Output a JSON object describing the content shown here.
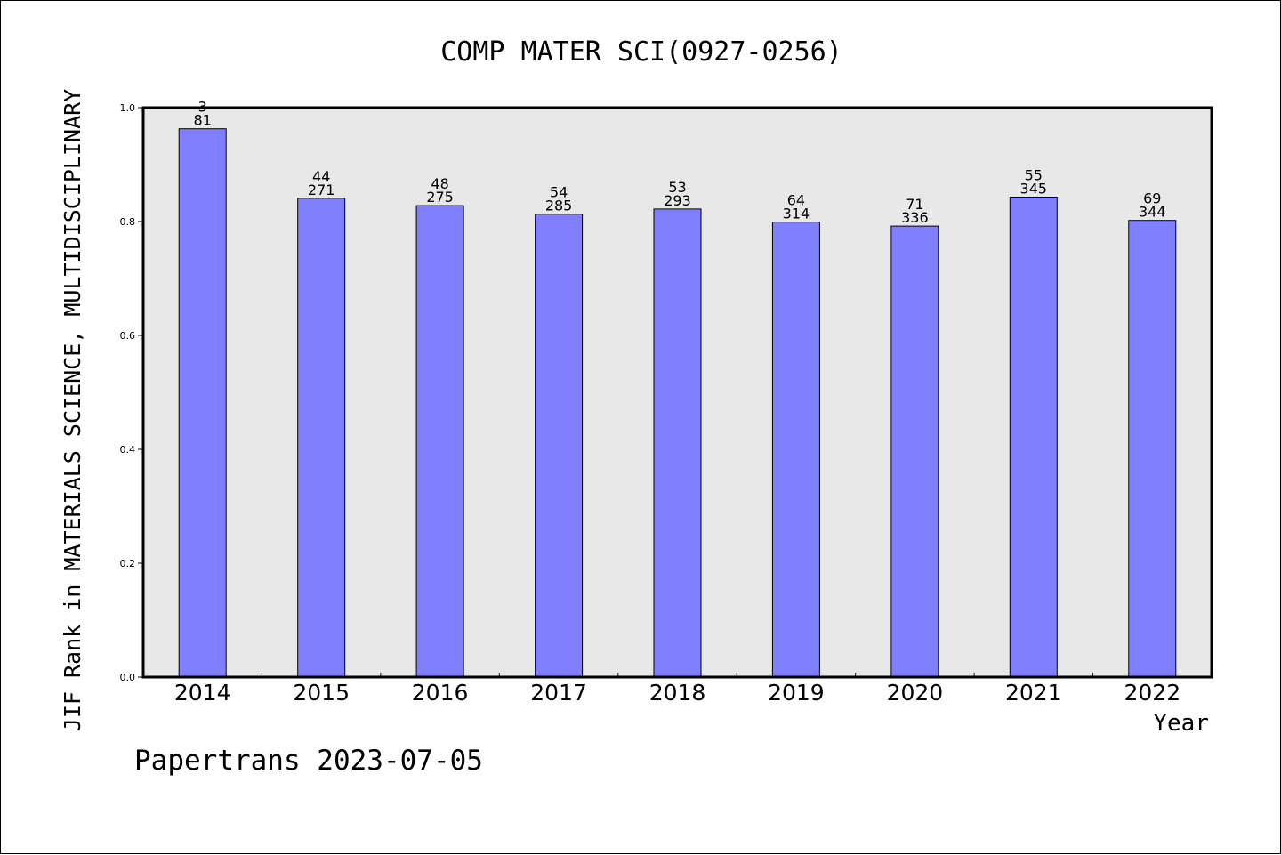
{
  "chart_data": {
    "type": "bar",
    "title": "COMP MATER SCI(0927-0256)",
    "xlabel": "Year",
    "ylabel": "JIF Rank in MATERIALS SCIENCE, MULTIDISCIPLINARY",
    "ylim": [
      0,
      1.0
    ],
    "yticks": [
      "0.0",
      "0.2",
      "0.4",
      "0.6",
      "0.8",
      "1.0"
    ],
    "grid": false,
    "categories": [
      "2014",
      "2015",
      "2016",
      "2017",
      "2018",
      "2019",
      "2020",
      "2021",
      "2022"
    ],
    "values": [
      0.963,
      0.841,
      0.828,
      0.813,
      0.822,
      0.799,
      0.792,
      0.843,
      0.802
    ],
    "rank": [
      "3",
      "44",
      "48",
      "54",
      "53",
      "64",
      "71",
      "55",
      "69"
    ],
    "total": [
      "81",
      "271",
      "275",
      "285",
      "293",
      "314",
      "336",
      "345",
      "344"
    ]
  },
  "footer": "Papertrans 2023-07-05",
  "colors": {
    "bar": "#8080ff",
    "plot_background": "#e8e8e8",
    "axis": "#000000"
  }
}
